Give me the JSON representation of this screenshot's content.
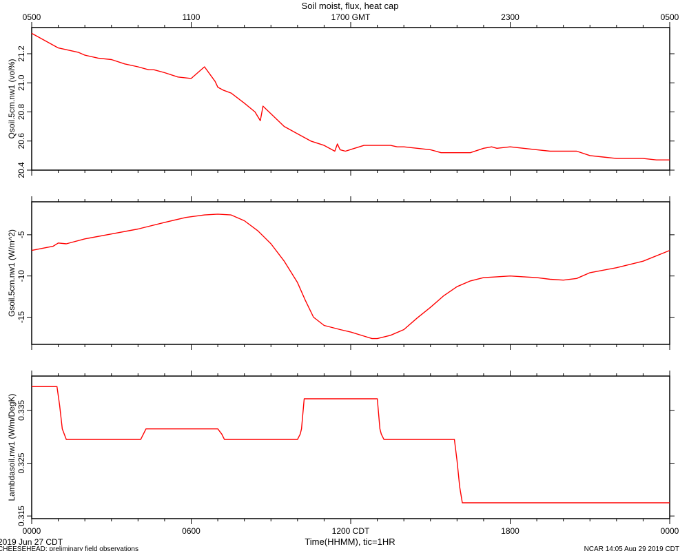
{
  "chart_data": {
    "title": "Soil moist, flux, heat cap",
    "type": "line",
    "line_color": "#ff0000",
    "top_axis": {
      "ticks": [
        "0500",
        "1100",
        "1700 GMT",
        "2300",
        "0500"
      ]
    },
    "bottom_axis": {
      "ticks": [
        "0000",
        "0600",
        "1200 CDT",
        "1800",
        "0000"
      ],
      "label": "Time(HHMM), tic=1HR",
      "range": [
        0,
        24
      ]
    },
    "footer": {
      "date": "2019 Jun 27 CDT",
      "project": "CHEESEHEAD: preliminary field observations",
      "credit": "NCAR 14:05 Aug 29 2019 CDT"
    },
    "panels": [
      {
        "ylabel": "Qsoil.5cm.nw1 (vol%)",
        "ylim": [
          20.4,
          21.38
        ],
        "yticks": [
          "20.4",
          "20.6",
          "20.8",
          "21.0",
          "21.2"
        ],
        "ytick_values": [
          20.4,
          20.6,
          20.8,
          21.0,
          21.2
        ],
        "x": [
          0,
          0.5,
          1,
          1.5,
          1.75,
          2,
          2.5,
          3,
          3.5,
          4,
          4.4,
          4.6,
          5,
          5.5,
          6,
          6.5,
          6.9,
          7,
          7.2,
          7.5,
          8,
          8.4,
          8.6,
          8.7,
          9.5,
          10,
          10.5,
          11,
          11.4,
          11.5,
          11.6,
          11.8,
          12.5,
          13,
          13.5,
          13.75,
          14,
          14.5,
          15,
          15.2,
          15.4,
          15.7,
          16.2,
          16.5,
          17,
          17.3,
          17.5,
          18,
          18.5,
          19,
          19.5,
          20,
          20.5,
          21,
          21.5,
          22,
          22.5,
          23,
          23.5,
          24
        ],
        "y": [
          21.34,
          21.29,
          21.24,
          21.22,
          21.21,
          21.19,
          21.17,
          21.16,
          21.13,
          21.11,
          21.09,
          21.09,
          21.07,
          21.04,
          21.03,
          21.11,
          21.01,
          20.97,
          20.95,
          20.93,
          20.86,
          20.8,
          20.74,
          20.84,
          20.7,
          20.65,
          20.6,
          20.57,
          20.53,
          20.58,
          20.54,
          20.53,
          20.57,
          20.57,
          20.57,
          20.56,
          20.56,
          20.55,
          20.54,
          20.53,
          20.52,
          20.52,
          20.52,
          20.52,
          20.55,
          20.56,
          20.55,
          20.56,
          20.55,
          20.54,
          20.53,
          20.53,
          20.53,
          20.5,
          20.49,
          20.48,
          20.48,
          20.48,
          20.47,
          20.47
        ]
      },
      {
        "ylabel": "Gsoil.5cm.nw1 (W/m^2)",
        "ylim": [
          -18.3,
          -1.0
        ],
        "yticks": [
          "-15",
          "-10",
          "-5"
        ],
        "ytick_values": [
          -15,
          -10,
          -5
        ],
        "x": [
          0,
          0.8,
          1.0,
          1.3,
          2,
          3,
          4,
          5,
          5.8,
          6.5,
          7,
          7.5,
          8,
          8.5,
          9,
          9.5,
          10,
          10.3,
          10.6,
          11,
          11.6,
          12,
          12.5,
          12.8,
          13,
          13.5,
          14,
          14.5,
          15,
          15.5,
          16,
          16.5,
          17,
          17.5,
          18,
          18.5,
          19,
          19.5,
          20,
          20.5,
          21,
          22,
          23,
          24
        ],
        "y": [
          -6.9,
          -6.4,
          -6.0,
          -6.1,
          -5.5,
          -4.9,
          -4.3,
          -3.5,
          -2.9,
          -2.6,
          -2.5,
          -2.6,
          -3.3,
          -4.5,
          -6.1,
          -8.2,
          -10.8,
          -13.0,
          -15.0,
          -16.0,
          -16.5,
          -16.8,
          -17.3,
          -17.6,
          -17.6,
          -17.2,
          -16.5,
          -15.1,
          -13.8,
          -12.4,
          -11.3,
          -10.6,
          -10.2,
          -10.1,
          -10.0,
          -10.1,
          -10.2,
          -10.4,
          -10.5,
          -10.3,
          -9.6,
          -9.0,
          -8.2,
          -6.9
        ]
      },
      {
        "ylabel": "Lambdasoil.nw1 (W/m/DegK)",
        "ylim": [
          0.3145,
          0.3415
        ],
        "yticks": [
          "0.315",
          "0.325",
          "0.335"
        ],
        "ytick_values": [
          0.315,
          0.325,
          0.335
        ],
        "x": [
          0,
          0.95,
          1.05,
          1.15,
          1.3,
          4.1,
          4.2,
          4.3,
          7.0,
          7.15,
          7.25,
          7.4,
          10.0,
          10.1,
          10.15,
          10.25,
          13.0,
          13.1,
          13.15,
          13.25,
          15.9,
          16.0,
          16.1,
          16.2,
          24
        ],
        "y": [
          0.3395,
          0.3395,
          0.336,
          0.3315,
          0.3295,
          0.3295,
          0.3305,
          0.3315,
          0.3315,
          0.3305,
          0.3295,
          0.3295,
          0.3295,
          0.3305,
          0.3315,
          0.3372,
          0.3372,
          0.3315,
          0.3305,
          0.3295,
          0.3295,
          0.3255,
          0.3205,
          0.3175,
          0.3175
        ]
      }
    ]
  }
}
